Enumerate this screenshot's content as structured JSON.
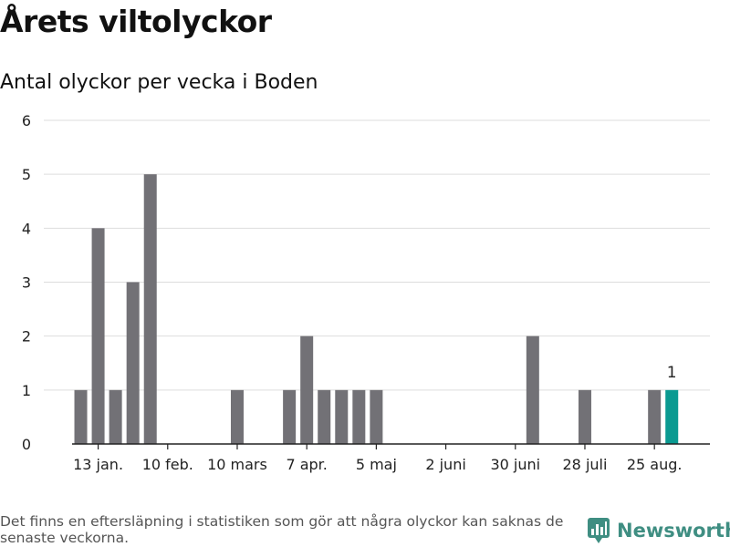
{
  "header": {
    "title": "Årets viltolyckor",
    "subtitle": "Antal olyckor per vecka i Boden"
  },
  "footer": {
    "note": "Det finns en eftersläpning i statistiken som gör att några olyckor kan saknas de senaste veckorna.",
    "brand": "Newsworthy",
    "brand_icon": "newsworthy-logo-icon"
  },
  "colors": {
    "bar": "#727176",
    "highlight": "#0a9a91",
    "grid": "#dddddd",
    "axis": "#222222",
    "brand": "#3f8e82"
  },
  "chart_data": {
    "type": "bar",
    "title": "Antal olyckor per vecka i Boden",
    "xlabel": "",
    "ylabel": "",
    "ylim": [
      0,
      6
    ],
    "yticks": [
      "0",
      "1",
      "2",
      "3",
      "4",
      "5",
      "6"
    ],
    "xticks": [
      {
        "week": 2,
        "label": "13 jan."
      },
      {
        "week": 6,
        "label": "10 feb."
      },
      {
        "week": 10,
        "label": "10 mars"
      },
      {
        "week": 14,
        "label": "7 apr."
      },
      {
        "week": 18,
        "label": "5 maj"
      },
      {
        "week": 22,
        "label": "2 juni"
      },
      {
        "week": 26,
        "label": "30 juni"
      },
      {
        "week": 30,
        "label": "28 juli"
      },
      {
        "week": 34,
        "label": "25 aug."
      }
    ],
    "weeks": [
      1,
      2,
      3,
      4,
      5,
      6,
      7,
      8,
      9,
      10,
      11,
      12,
      13,
      14,
      15,
      16,
      17,
      18,
      19,
      20,
      21,
      22,
      23,
      24,
      25,
      26,
      27,
      28,
      29,
      30,
      31,
      32,
      33,
      34,
      35
    ],
    "values": [
      1,
      4,
      1,
      3,
      5,
      0,
      0,
      0,
      0,
      1,
      0,
      0,
      1,
      2,
      1,
      1,
      1,
      1,
      0,
      0,
      0,
      0,
      0,
      0,
      0,
      0,
      2,
      0,
      0,
      1,
      0,
      0,
      0,
      1,
      1
    ],
    "highlight_index": 34,
    "highlight_label": "1",
    "grid": true
  }
}
